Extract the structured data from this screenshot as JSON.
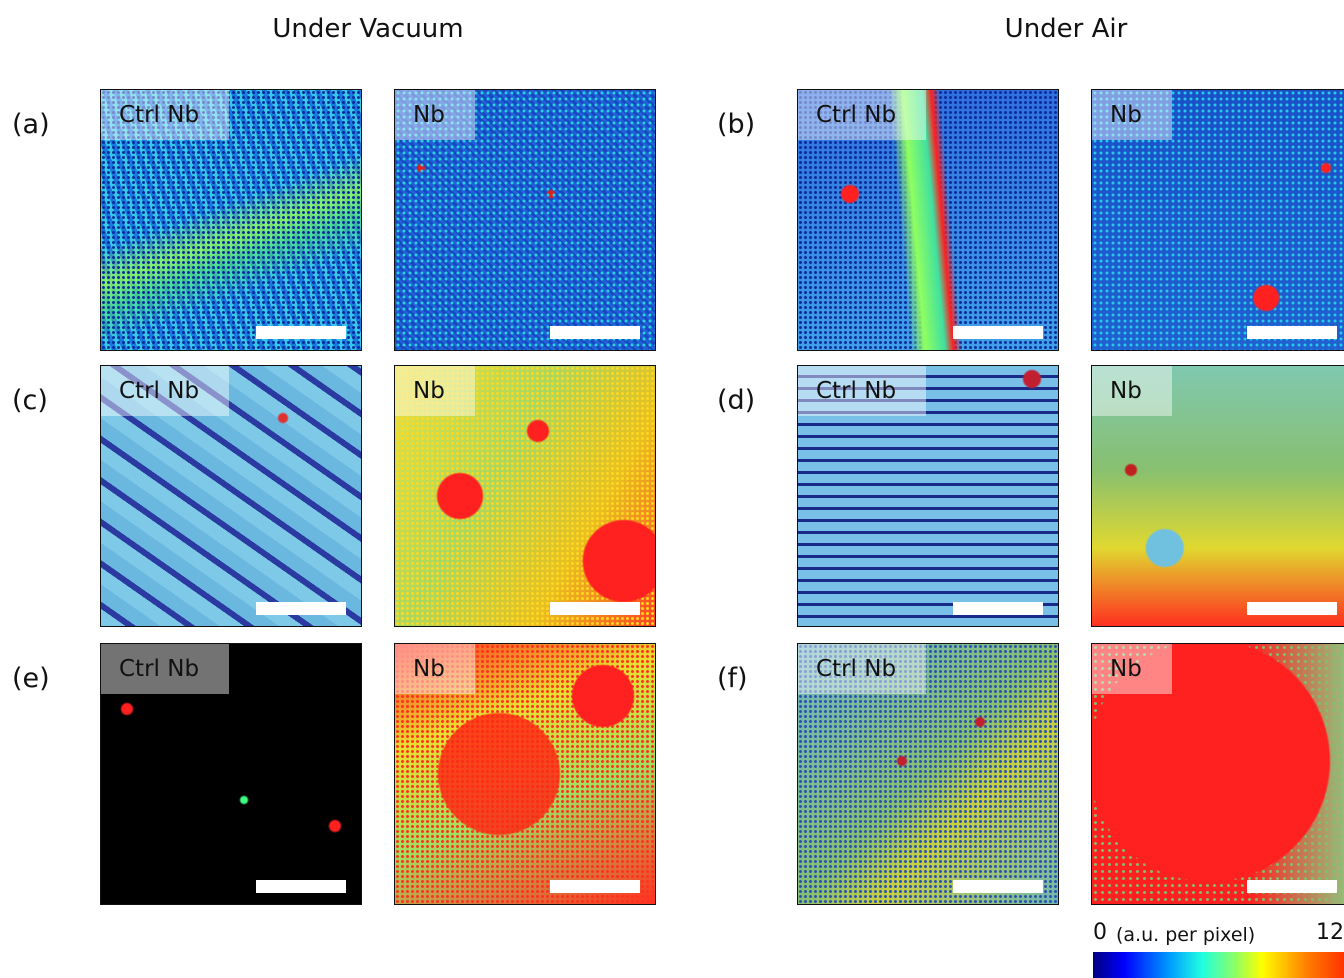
{
  "groups": [
    {
      "title": "Under Vacuum",
      "rows": [
        {
          "label": "(a)",
          "panels": [
            "Ctrl Nb",
            "Nb"
          ]
        },
        {
          "label": "(c)",
          "panels": [
            "Ctrl Nb",
            "Nb"
          ]
        },
        {
          "label": "(e)",
          "panels": [
            "Ctrl Nb",
            "Nb"
          ]
        }
      ]
    },
    {
      "title": "Under Air",
      "rows": [
        {
          "label": "(b)",
          "panels": [
            "Ctrl Nb",
            "Nb"
          ]
        },
        {
          "label": "(d)",
          "panels": [
            "Ctrl Nb",
            "Nb"
          ]
        },
        {
          "label": "(f)",
          "panels": [
            "Ctrl Nb",
            "Nb"
          ]
        }
      ]
    }
  ],
  "colorbar": {
    "min": 0,
    "unit": "(a.u. per pixel)",
    "max": 12
  }
}
